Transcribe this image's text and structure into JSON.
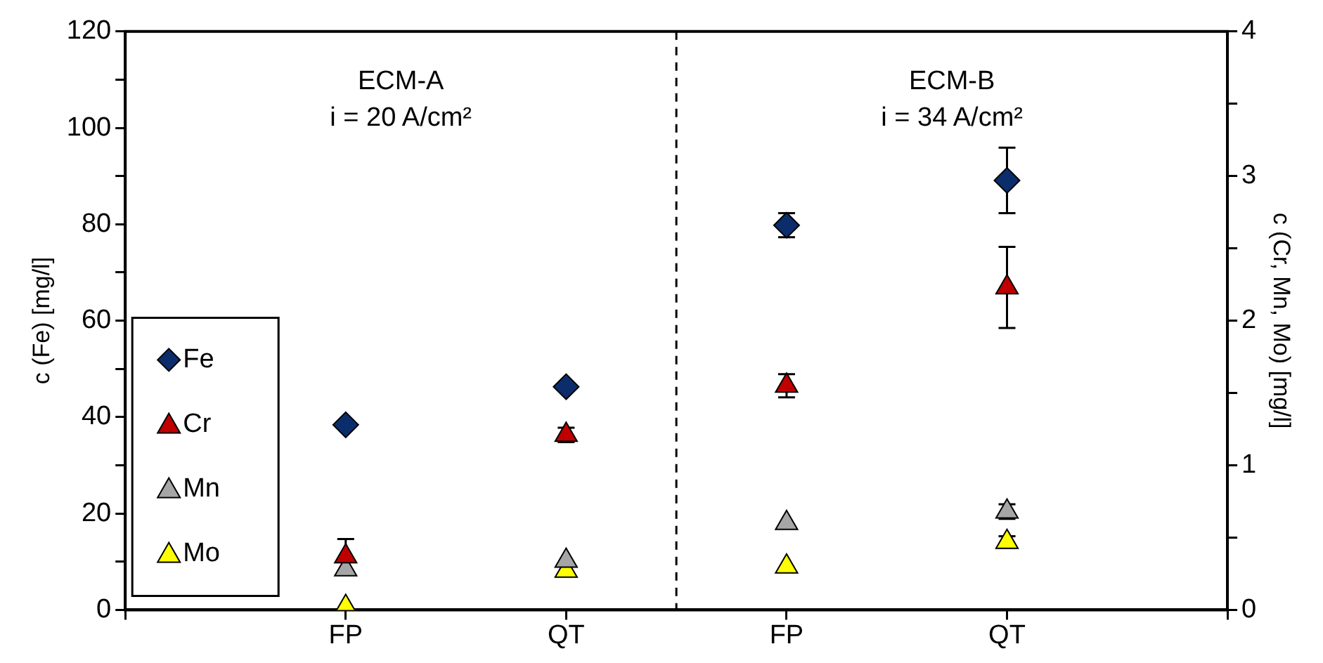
{
  "chart_data": {
    "type": "scatter",
    "ylabel": "c (Fe) [mg/l]",
    "y2label": "c (Cr, Mn, Mo) [mg/l]",
    "categories": [
      null,
      "FP",
      "QT",
      "FP",
      "QT",
      null
    ],
    "ylim": [
      0,
      120
    ],
    "yticks": [
      0,
      {
        "value": 10,
        "label": null
      },
      20,
      {
        "value": 30,
        "label": null
      },
      40,
      {
        "value": 50,
        "label": null
      },
      60,
      {
        "value": 70,
        "label": null
      },
      80,
      {
        "value": 90,
        "label": null
      },
      100,
      {
        "value": 110,
        "label": null
      },
      120
    ],
    "y2lim": [
      0,
      4
    ],
    "y2ticks": [
      0,
      {
        "value": 0.5,
        "label": null
      },
      1,
      {
        "value": 1.5,
        "label": null
      },
      2,
      {
        "value": 2.5,
        "label": null
      },
      3,
      {
        "value": 3.5,
        "label": null
      },
      4
    ],
    "legend": "bottom left",
    "annotations": [
      "ECM-A",
      "i = 20 A/cm²",
      "ECM-B",
      "i = 34 A/cm²"
    ],
    "series": [
      {
        "name": "Fe",
        "color": "#0c2d6b",
        "marker": "diamond",
        "values": [
          null,
          38.4,
          46.3,
          79.8,
          89.1,
          null
        ],
        "errors": [
          null,
          null,
          null,
          2.5,
          6.8,
          null
        ]
      },
      {
        "name": "Cr",
        "color": "#c00000",
        "marker": "triangle",
        "axis": "y2",
        "values": [
          null,
          0.37,
          1.21,
          1.55,
          2.23,
          null
        ],
        "errors": [
          null,
          0.12,
          0.05,
          0.08,
          0.28,
          null
        ]
      },
      {
        "name": "Mn",
        "color": "#a6a6a6",
        "marker": "triangle",
        "axis": "y2",
        "values": [
          null,
          0.28,
          0.34,
          0.6,
          0.68,
          null
        ],
        "errors": [
          null,
          null,
          null,
          null,
          0.05,
          null
        ]
      },
      {
        "name": "Mo",
        "color": "#ffff00",
        "marker": "triangle",
        "axis": "y2",
        "values": [
          null,
          0.02,
          0.27,
          0.3,
          0.47,
          null
        ],
        "errors": [
          null,
          null,
          null,
          null,
          0.04,
          null
        ]
      }
    ]
  }
}
